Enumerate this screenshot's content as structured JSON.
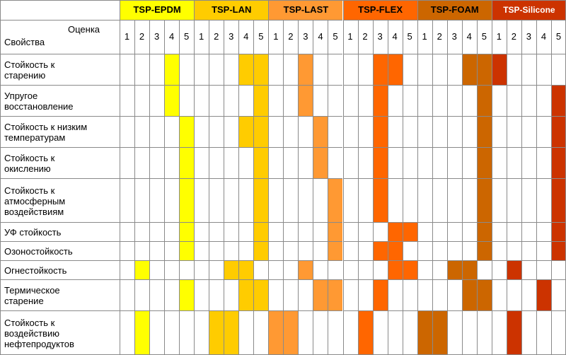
{
  "table": {
    "corner_top": "Оценка",
    "corner_bottom": "Свойства",
    "scores": [
      "1",
      "2",
      "3",
      "4",
      "5"
    ],
    "groups": [
      {
        "name": "TSP-EPDM",
        "color": "#ffff00",
        "text_color": "#000000"
      },
      {
        "name": "TSP-LAN",
        "color": "#ffcc00",
        "text_color": "#000000"
      },
      {
        "name": "TSP-LAST",
        "color": "#ff9933",
        "text_color": "#000000"
      },
      {
        "name": "TSP-FLEX",
        "color": "#ff6600",
        "text_color": "#000000"
      },
      {
        "name": "TSP-FOAM",
        "color": "#cc6600",
        "text_color": "#000000"
      },
      {
        "name": "TSP-Silicone",
        "color": "#cc3300",
        "text_color": "#ffffff"
      }
    ],
    "rows": [
      {
        "lines": [
          "Стойкость к",
          "старению"
        ],
        "ratings": [
          [
            4
          ],
          [
            4,
            5
          ],
          [
            3
          ],
          [
            3,
            4
          ],
          [
            4,
            5
          ],
          [
            1
          ]
        ]
      },
      {
        "lines": [
          "Упругое",
          "восстановление"
        ],
        "ratings": [
          [
            4
          ],
          [
            5
          ],
          [
            3
          ],
          [
            3
          ],
          [
            5
          ],
          [
            5
          ]
        ]
      },
      {
        "lines": [
          "Стойкость к низким",
          "температурам"
        ],
        "ratings": [
          [
            5
          ],
          [
            4,
            5
          ],
          [
            4
          ],
          [
            3
          ],
          [
            5
          ],
          [
            5
          ]
        ]
      },
      {
        "lines": [
          "Стойкость к",
          "окислению"
        ],
        "ratings": [
          [
            5
          ],
          [
            5
          ],
          [
            4
          ],
          [
            3
          ],
          [
            5
          ],
          [
            5
          ]
        ]
      },
      {
        "lines": [
          "Стойкость к",
          "атмосферным",
          "воздействиям"
        ],
        "ratings": [
          [
            5
          ],
          [
            5
          ],
          [
            5
          ],
          [
            3
          ],
          [
            5
          ],
          [
            5
          ]
        ]
      },
      {
        "lines": [
          "УФ стойкость"
        ],
        "ratings": [
          [
            5
          ],
          [
            5
          ],
          [
            5
          ],
          [
            4,
            5
          ],
          [
            5
          ],
          [
            5
          ]
        ]
      },
      {
        "lines": [
          "Озоностойкость"
        ],
        "ratings": [
          [
            5
          ],
          [
            5
          ],
          [
            5
          ],
          [
            3,
            4
          ],
          [
            5
          ],
          [
            5
          ]
        ]
      },
      {
        "lines": [
          "Огнестойкость"
        ],
        "ratings": [
          [
            2
          ],
          [
            3,
            4
          ],
          [
            3
          ],
          [
            4,
            5
          ],
          [
            3,
            4
          ],
          [
            2
          ]
        ]
      },
      {
        "lines": [
          "Термическое",
          "старение"
        ],
        "ratings": [
          [
            5
          ],
          [
            4,
            5
          ],
          [
            4,
            5
          ],
          [
            3
          ],
          [
            4,
            5
          ],
          [
            4
          ]
        ]
      },
      {
        "lines": [
          "Стойкость к",
          "воздействию",
          "нефтепродуктов"
        ],
        "ratings": [
          [
            2
          ],
          [
            2,
            3
          ],
          [
            1,
            2
          ],
          [
            2
          ],
          [
            1,
            2
          ],
          [
            2
          ]
        ]
      }
    ]
  }
}
